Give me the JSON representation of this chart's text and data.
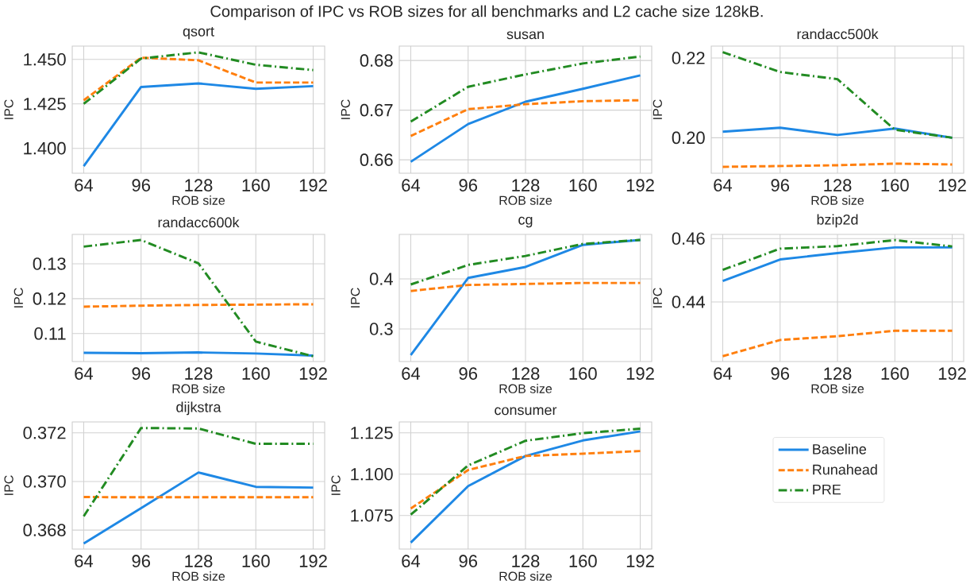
{
  "chart_data": [
    {
      "type": "line",
      "title": "qsort",
      "xlabel": "ROB size",
      "ylabel": "IPC",
      "annotations": [
        "Comparison of IPC vs ROB sizes for all benchmarks and L2 cache size 128kB."
      ],
      "x": [
        64,
        96,
        128,
        160,
        192
      ],
      "xlim": [
        57.6,
        198.4
      ],
      "xticks": [
        64,
        96,
        128,
        160,
        192
      ],
      "ylim": [
        1.386,
        1.4575
      ],
      "yticks": [
        {
          "value": 1.4,
          "label": "1.400"
        },
        1.425,
        {
          "value": 1.45,
          "label": "1.450"
        }
      ],
      "grid": true,
      "series": [
        {
          "color": "#1e88e5",
          "line_style": "solid",
          "values": [
            1.39,
            1.4345,
            1.4365,
            1.4335,
            1.435
          ]
        },
        {
          "color": "#ff7f0e",
          "line_style": "dashed",
          "values": [
            1.427,
            1.451,
            1.4495,
            1.437,
            1.437
          ]
        },
        {
          "color": "#228b22",
          "line_style": "dashdot",
          "values": [
            1.425,
            1.4505,
            1.454,
            1.447,
            1.444
          ]
        }
      ]
    },
    {
      "type": "line",
      "title": "susan",
      "xlabel": "ROB size",
      "ylabel": "IPC",
      "x": [
        64,
        96,
        128,
        160,
        192
      ],
      "xlim": [
        57.6,
        198.4
      ],
      "xticks": [
        64,
        96,
        128,
        160,
        192
      ],
      "ylim": [
        0.6573,
        0.6829
      ],
      "yticks": [
        0.66,
        0.67,
        0.68
      ],
      "grid": true,
      "series": [
        {
          "color": "#1e88e5",
          "line_style": "solid",
          "values": [
            0.6596,
            0.6672,
            0.6717,
            0.6743,
            0.677
          ]
        },
        {
          "color": "#ff7f0e",
          "line_style": "dashed",
          "values": [
            0.6648,
            0.6702,
            0.6712,
            0.6718,
            0.672
          ]
        },
        {
          "color": "#228b22",
          "line_style": "dashdot",
          "values": [
            0.6677,
            0.6747,
            0.6772,
            0.6794,
            0.6808
          ]
        }
      ]
    },
    {
      "type": "line",
      "title": "randacc500k",
      "xlabel": "ROB size",
      "ylabel": "IPC",
      "x": [
        64,
        96,
        128,
        160,
        192
      ],
      "xlim": [
        57.6,
        198.4
      ],
      "xticks": [
        64,
        96,
        128,
        160,
        192
      ],
      "ylim": [
        0.1911,
        0.223
      ],
      "yticks": [
        {
          "value": 0.2,
          "label": "0.20"
        },
        0.22
      ],
      "grid": true,
      "series": [
        {
          "color": "#1e88e5",
          "line_style": "solid",
          "values": [
            0.2015,
            0.2025,
            0.2007,
            0.2023,
            0.2
          ]
        },
        {
          "color": "#ff7f0e",
          "line_style": "dashed",
          "values": [
            0.1927,
            0.1929,
            0.1931,
            0.1935,
            0.1933
          ]
        },
        {
          "color": "#228b22",
          "line_style": "dashdot",
          "values": [
            0.2215,
            0.2165,
            0.2147,
            0.202,
            0.2
          ]
        }
      ]
    },
    {
      "type": "line",
      "title": "randacc600k",
      "xlabel": "ROB size",
      "ylabel": "IPC",
      "x": [
        64,
        96,
        128,
        160,
        192
      ],
      "xlim": [
        57.6,
        198.4
      ],
      "xticks": [
        64,
        96,
        128,
        160,
        192
      ],
      "ylim": [
        0.102,
        0.1384
      ],
      "yticks": [
        0.11,
        0.12,
        0.13
      ],
      "grid": true,
      "series": [
        {
          "color": "#1e88e5",
          "line_style": "solid",
          "values": [
            0.1045,
            0.1044,
            0.1046,
            0.1043,
            0.1037
          ]
        },
        {
          "color": "#ff7f0e",
          "line_style": "dashed",
          "values": [
            0.1177,
            0.118,
            0.1182,
            0.1183,
            0.1184
          ]
        },
        {
          "color": "#228b22",
          "line_style": "dashdot",
          "values": [
            0.1349,
            0.1368,
            0.1301,
            0.1077,
            0.1035
          ]
        }
      ]
    },
    {
      "type": "line",
      "title": "cg",
      "xlabel": "ROB size",
      "ylabel": "IPC",
      "x": [
        64,
        96,
        128,
        160,
        192
      ],
      "xlim": [
        57.6,
        198.4
      ],
      "xticks": [
        64,
        96,
        128,
        160,
        192
      ],
      "ylim": [
        0.235,
        0.489
      ],
      "yticks": [
        0.3,
        0.4
      ],
      "grid": true,
      "series": [
        {
          "color": "#1e88e5",
          "line_style": "solid",
          "values": [
            0.248,
            0.402,
            0.424,
            0.468,
            0.478
          ]
        },
        {
          "color": "#ff7f0e",
          "line_style": "dashed",
          "values": [
            0.376,
            0.388,
            0.39,
            0.392,
            0.392
          ]
        },
        {
          "color": "#228b22",
          "line_style": "dashdot",
          "values": [
            0.389,
            0.428,
            0.446,
            0.47,
            0.478
          ]
        }
      ]
    },
    {
      "type": "line",
      "title": "bzip2d",
      "xlabel": "ROB size",
      "ylabel": "IPC",
      "x": [
        64,
        96,
        128,
        160,
        192
      ],
      "xlim": [
        57.6,
        198.4
      ],
      "xticks": [
        64,
        96,
        128,
        160,
        192
      ],
      "ylim": [
        0.4212,
        0.4613
      ],
      "yticks": [
        0.44,
        0.46
      ],
      "grid": true,
      "series": [
        {
          "color": "#1e88e5",
          "line_style": "solid",
          "values": [
            0.4466,
            0.4534,
            0.4554,
            0.4572,
            0.4572
          ]
        },
        {
          "color": "#ff7f0e",
          "line_style": "dashed",
          "values": [
            0.4229,
            0.428,
            0.4292,
            0.4309,
            0.4309
          ]
        },
        {
          "color": "#228b22",
          "line_style": "dashdot",
          "values": [
            0.4501,
            0.4568,
            0.4576,
            0.4595,
            0.4575
          ]
        }
      ]
    },
    {
      "type": "line",
      "title": "dijkstra",
      "xlabel": "ROB size",
      "ylabel": "IPC",
      "x": [
        64,
        96,
        128,
        160,
        192
      ],
      "xlim": [
        57.6,
        198.4
      ],
      "xticks": [
        64,
        96,
        128,
        160,
        192
      ],
      "ylim": [
        0.36722,
        0.37245
      ],
      "yticks": [
        0.368,
        {
          "value": 0.37,
          "label": "0.370"
        },
        0.372
      ],
      "grid": true,
      "series": [
        {
          "color": "#1e88e5",
          "line_style": "solid",
          "values": [
            0.36745,
            0.3689,
            0.37037,
            0.36978,
            0.36975
          ]
        },
        {
          "color": "#ff7f0e",
          "line_style": "dashed",
          "values": [
            0.36936,
            0.36935,
            0.36935,
            0.36935,
            0.36935
          ]
        },
        {
          "color": "#228b22",
          "line_style": "dashdot",
          "values": [
            0.36857,
            0.3722,
            0.37218,
            0.37155,
            0.37155
          ]
        }
      ]
    },
    {
      "type": "line",
      "title": "consumer",
      "xlabel": "ROB size",
      "ylabel": "IPC",
      "x": [
        64,
        96,
        128,
        160,
        192
      ],
      "xlim": [
        57.6,
        198.4
      ],
      "xticks": [
        64,
        96,
        128,
        160,
        192
      ],
      "ylim": [
        1.0547,
        1.1316
      ],
      "yticks": [
        1.075,
        {
          "value": 1.1,
          "label": "1.100"
        },
        1.125
      ],
      "grid": true,
      "legend": "right",
      "series": [
        {
          "name": "Baseline",
          "color": "#1e88e5",
          "line_style": "solid",
          "values": [
            1.0586,
            1.0928,
            1.111,
            1.1204,
            1.1259
          ]
        },
        {
          "name": "Runahead",
          "color": "#ff7f0e",
          "line_style": "dashed",
          "values": [
            1.0792,
            1.1025,
            1.111,
            1.1124,
            1.114
          ]
        },
        {
          "name": "PRE",
          "color": "#228b22",
          "line_style": "dashdot",
          "values": [
            1.0755,
            1.1053,
            1.1202,
            1.1248,
            1.1275
          ]
        }
      ]
    }
  ]
}
